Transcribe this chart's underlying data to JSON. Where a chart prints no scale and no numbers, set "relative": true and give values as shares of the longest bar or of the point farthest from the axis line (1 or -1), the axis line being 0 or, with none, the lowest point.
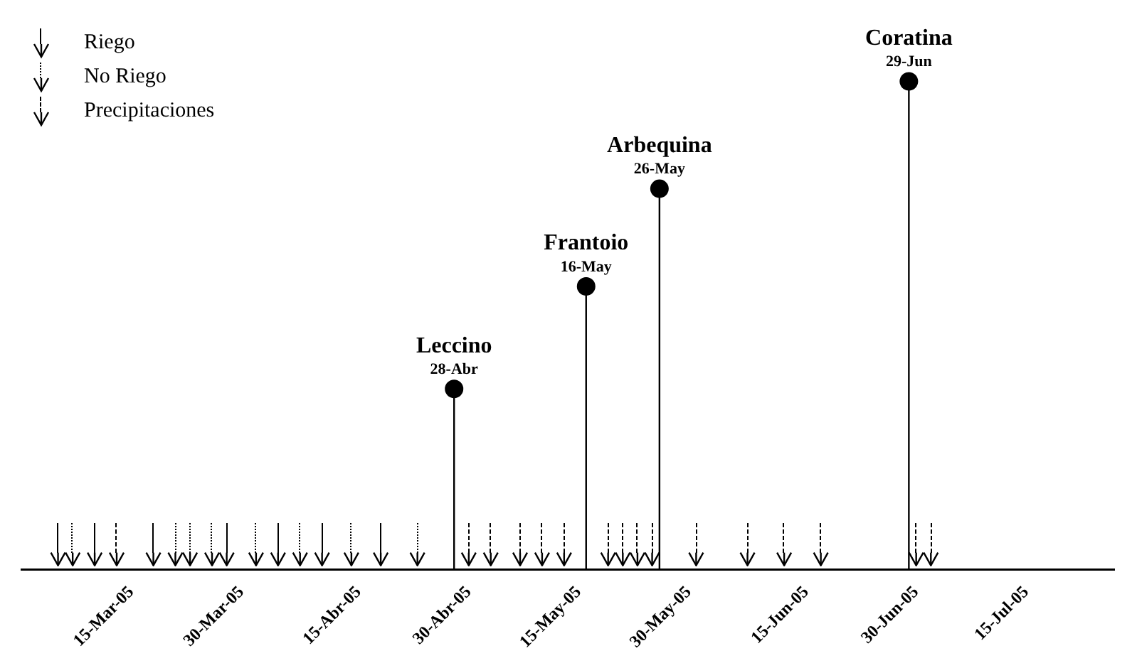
{
  "chart_data": {
    "type": "lollipop",
    "relative": true,
    "tick_labels": "x",
    "grid": false,
    "legend": "top left",
    "marker": "circle",
    "xlim": [
      "2005-02-28",
      "2005-07-27"
    ],
    "xticks": [
      {
        "value": "2005-03-15",
        "label": "15-Mar-05"
      },
      {
        "value": "2005-03-30",
        "label": "30-Mar-05"
      },
      {
        "value": "2005-04-15",
        "label": "15-Abr-05"
      },
      {
        "value": "2005-04-30",
        "label": "30-Abr-05"
      },
      {
        "value": "2005-05-15",
        "label": "15-May-05"
      },
      {
        "value": "2005-05-30",
        "label": "30-May-05"
      },
      {
        "value": "2005-06-15",
        "label": "15-Jun-05"
      },
      {
        "value": "2005-06-30",
        "label": "30-Jun-05"
      },
      {
        "value": "2005-07-15",
        "label": "15-Jul-05"
      }
    ],
    "series": [
      {
        "type": "lollipop",
        "color": "#000000",
        "x": [
          "2005-04-28",
          "2005-05-16",
          "2005-05-26",
          "2005-06-29"
        ],
        "values": [
          0.37,
          0.58,
          0.78,
          1
        ]
      },
      {
        "type": "scatter",
        "name": "Riego",
        "color": "#000000",
        "marker": "cross",
        "line_style": "solid",
        "x": [
          "2005-03-05",
          "2005-03-10",
          "2005-03-18",
          "2005-03-28",
          "2005-04-04",
          "2005-04-10",
          "2005-04-18"
        ],
        "values": [
          0.02,
          0.02,
          0.02,
          0.02,
          0.02,
          0.02,
          0.02
        ]
      },
      {
        "type": "scatter",
        "name": "No Riego",
        "color": "#000000",
        "marker": "cross",
        "line_style": "dotted",
        "x": [
          "2005-03-07",
          "2005-03-21",
          "2005-03-23",
          "2005-03-26",
          "2005-04-01",
          "2005-04-07",
          "2005-04-14",
          "2005-04-23"
        ],
        "values": [
          0.02,
          0.02,
          0.02,
          0.02,
          0.02,
          0.02,
          0.02,
          0.02
        ]
      },
      {
        "type": "scatter",
        "name": "Precipitaciones",
        "color": "#000000",
        "marker": "cross",
        "line_style": "dashed",
        "x": [
          "2005-03-13",
          "2005-04-30",
          "2005-05-03",
          "2005-05-07",
          "2005-05-10",
          "2005-05-13",
          "2005-05-19",
          "2005-05-21",
          "2005-05-23",
          "2005-05-25",
          "2005-05-31",
          "2005-06-07",
          "2005-06-12",
          "2005-06-17",
          "2005-06-30",
          "2005-07-02"
        ],
        "values": [
          0.02,
          0.02,
          0.02,
          0.02,
          0.02,
          0.02,
          0.02,
          0.02,
          0.02,
          0.02,
          0.02,
          0.02,
          0.02,
          0.02,
          0.02,
          0.02
        ]
      }
    ],
    "annotations": [
      {
        "text": "Leccino",
        "x": "2005-04-28",
        "y": 0.37
      },
      {
        "text": "28-Abr",
        "x": "2005-04-28",
        "y": 0.37
      },
      {
        "text": "Frantoio",
        "x": "2005-05-16",
        "y": 0.58
      },
      {
        "text": "16-May",
        "x": "2005-05-16",
        "y": 0.58
      },
      {
        "text": "Arbequina",
        "x": "2005-05-26",
        "y": 0.78
      },
      {
        "text": "26-May",
        "x": "2005-05-26",
        "y": 0.78
      },
      {
        "text": "Coratina",
        "x": "2005-06-29",
        "y": 1
      },
      {
        "text": "29-Jun",
        "x": "2005-06-29",
        "y": 1
      }
    ]
  }
}
